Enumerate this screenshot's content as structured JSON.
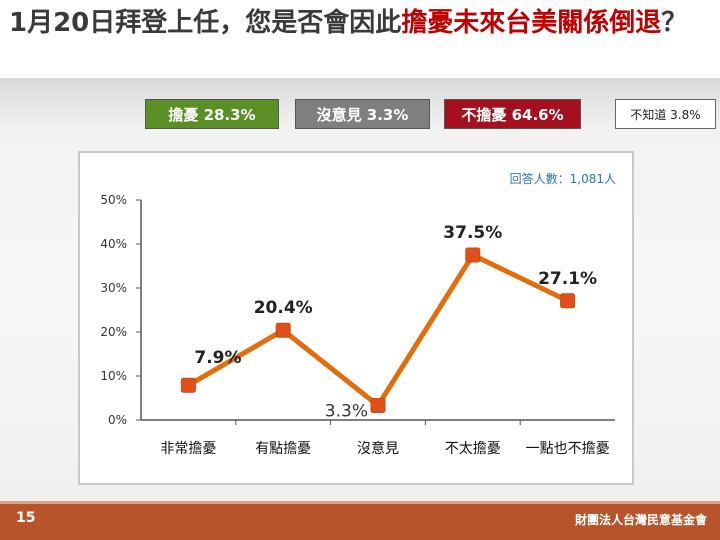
{
  "slide": {
    "title_prefix": "1月20日拜登上任，您是否會因此",
    "title_highlight": "擔憂未來台美關係倒退",
    "title_suffix": "？",
    "page_number": "15",
    "organization": "財團法人台灣民意基金會"
  },
  "summary_boxes": [
    {
      "label": "擔憂 28.3%",
      "color": "#5a8f25"
    },
    {
      "label": "沒意見 3.3%",
      "color": "#7f7f7f"
    },
    {
      "label": "不擔憂 64.6%",
      "color": "#a50f1e"
    },
    {
      "label": "不知道 3.8%",
      "color": "#ffffff"
    }
  ],
  "chart_data": {
    "type": "line",
    "categories": [
      "非常擔憂",
      "有點擔憂",
      "沒意見",
      "不太擔憂",
      "一點也不擔憂"
    ],
    "values": [
      7.9,
      20.4,
      3.3,
      37.5,
      27.1
    ],
    "value_labels": [
      "7.9%",
      "20.4%",
      "3.3%",
      "37.5%",
      "27.1%"
    ],
    "ylim": [
      0,
      50
    ],
    "yticks": [
      "0%",
      "10%",
      "20%",
      "30%",
      "40%",
      "50%"
    ],
    "annotation": "回答人數：1,081人",
    "line_color": "#e46c0a",
    "marker_color": "#e0501a",
    "grid": false,
    "title": "",
    "xlabel": "",
    "ylabel": ""
  }
}
